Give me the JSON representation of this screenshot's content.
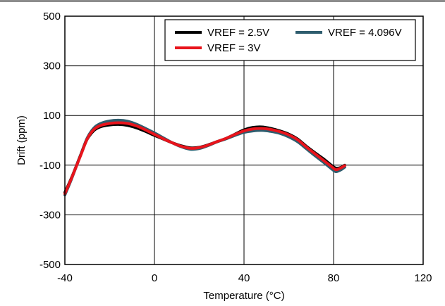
{
  "chart_data": {
    "type": "line",
    "xlabel": "Temperature (°C)",
    "ylabel": "Drift (ppm)",
    "xlim": [
      -40,
      120
    ],
    "ylim": [
      -500,
      500
    ],
    "x_ticks": [
      -40,
      0,
      40,
      80,
      120
    ],
    "y_ticks": [
      -500,
      -300,
      -100,
      100,
      300,
      500
    ],
    "x_tick_labels": [
      "-40",
      "0",
      "40",
      "80",
      "120"
    ],
    "y_tick_labels": [
      "-500",
      "-300",
      "-100",
      "100",
      "300",
      "500"
    ],
    "grid": true,
    "legend_position": "top-right",
    "series": [
      {
        "name": "VREF = 2.5V",
        "color": "#000000",
        "x": [
          -40,
          -37,
          -33,
          -30,
          -27,
          -24,
          -20,
          -16,
          -12,
          -8,
          -4,
          0,
          4,
          8,
          12,
          16,
          20,
          24,
          28,
          32,
          36,
          40,
          44,
          48,
          52,
          56,
          60,
          64,
          68,
          72,
          76,
          79,
          81,
          83,
          85
        ],
        "y": [
          -210,
          -150,
          -60,
          5,
          40,
          55,
          62,
          64,
          60,
          50,
          36,
          20,
          5,
          -10,
          -22,
          -30,
          -28,
          -18,
          -5,
          8,
          25,
          42,
          52,
          54,
          48,
          38,
          25,
          5,
          -25,
          -52,
          -78,
          -100,
          -112,
          -110,
          -100
        ]
      },
      {
        "name": "VREF = 3V",
        "color": "#e8141c",
        "x": [
          -40,
          -37,
          -33,
          -30,
          -27,
          -24,
          -20,
          -16,
          -12,
          -8,
          -4,
          0,
          4,
          8,
          12,
          16,
          20,
          24,
          28,
          32,
          36,
          40,
          44,
          48,
          52,
          56,
          60,
          64,
          68,
          72,
          76,
          79,
          81,
          83,
          85
        ],
        "y": [
          -215,
          -152,
          -62,
          6,
          44,
          60,
          68,
          71,
          68,
          58,
          42,
          24,
          6,
          -10,
          -24,
          -32,
          -29,
          -19,
          -5,
          8,
          24,
          38,
          46,
          48,
          44,
          35,
          22,
          2,
          -28,
          -56,
          -84,
          -105,
          -118,
          -112,
          -102
        ]
      },
      {
        "name": "VREF = 4.096V",
        "color": "#2e5d6e",
        "x": [
          -40,
          -37,
          -33,
          -30,
          -27,
          -24,
          -20,
          -16,
          -12,
          -8,
          -4,
          0,
          4,
          8,
          12,
          16,
          20,
          24,
          28,
          32,
          36,
          40,
          44,
          48,
          52,
          56,
          60,
          64,
          68,
          72,
          76,
          79,
          81,
          83,
          85
        ],
        "y": [
          -220,
          -155,
          -60,
          10,
          50,
          68,
          78,
          81,
          77,
          65,
          48,
          30,
          10,
          -10,
          -26,
          -36,
          -33,
          -21,
          -6,
          6,
          20,
          32,
          38,
          40,
          36,
          28,
          14,
          -6,
          -35,
          -64,
          -92,
          -114,
          -126,
          -120,
          -108
        ]
      }
    ],
    "legend_rows": [
      [
        {
          "name": "VREF = 2.5V",
          "color": "#000000"
        },
        {
          "name": "VREF = 4.096V",
          "color": "#2e5d6e"
        }
      ],
      [
        {
          "name": "VREF = 3V",
          "color": "#e8141c"
        }
      ]
    ]
  }
}
